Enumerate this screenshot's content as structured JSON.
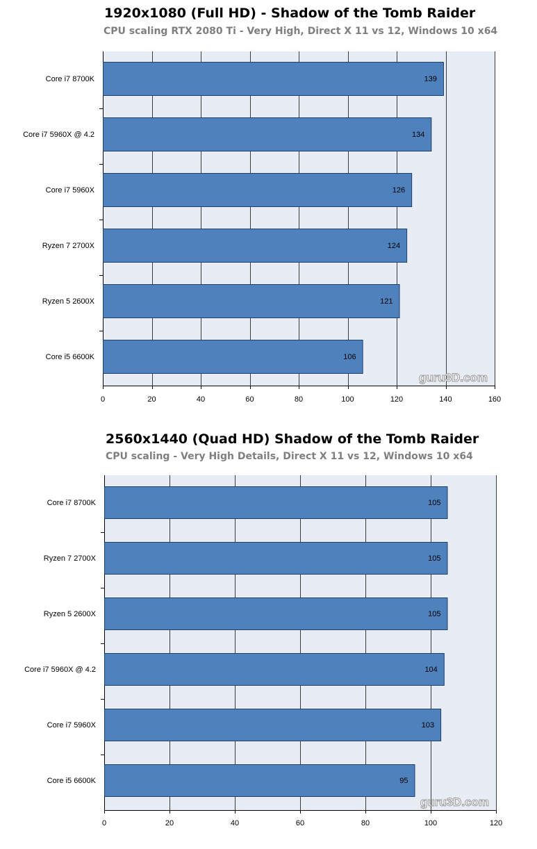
{
  "chart_data": [
    {
      "type": "bar",
      "orientation": "horizontal",
      "title": "1920x1080 (Full HD) - Shadow of the Tomb Raider",
      "subtitle": "CPU scaling RTX 2080 Ti - Very High, Direct X 11 vs 12, Windows 10 x64",
      "categories": [
        "Core i7 8700K",
        "Core i7 5960X @ 4.2",
        "Core i7 5960X",
        "Ryzen 7 2700X",
        "Ryzen 5 2600X",
        "Core i5 6600K"
      ],
      "values": [
        139,
        134,
        126,
        124,
        121,
        106
      ],
      "xlim": [
        0,
        160
      ],
      "xticks": [
        0,
        20,
        40,
        60,
        80,
        100,
        120,
        140,
        160
      ],
      "grid": true,
      "watermark": "guru3D.com"
    },
    {
      "type": "bar",
      "orientation": "horizontal",
      "title": "2560x1440 (Quad HD) Shadow of the Tomb Raider",
      "subtitle": "CPU scaling - Very High Details, Direct X 11 vs 12, Windows 10 x64",
      "categories": [
        "Core i7 8700K",
        "Ryzen 7 2700X",
        "Ryzen 5 2600X",
        "Core i7 5960X @ 4.2",
        "Core i7 5960X",
        "Core i5 6600K"
      ],
      "values": [
        105,
        105,
        105,
        104,
        103,
        95
      ],
      "xlim": [
        0,
        120
      ],
      "xticks": [
        0,
        20,
        40,
        60,
        80,
        100,
        120
      ],
      "grid": true,
      "watermark": "guru3D.com"
    }
  ],
  "colors": {
    "bar_fill": "#4f81bd",
    "bar_stroke": "#1f3f6a",
    "plot_bg": "#e8edf5",
    "grid": "#3a3a3a"
  }
}
